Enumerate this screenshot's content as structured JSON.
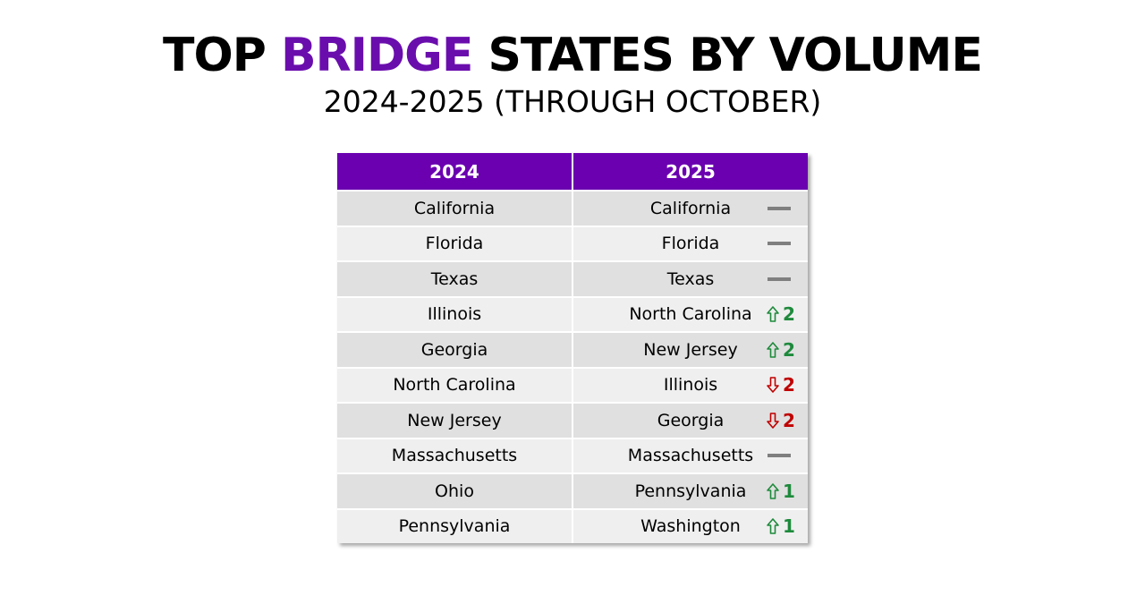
{
  "header": {
    "title_parts": [
      "TOP",
      "BRIDGE",
      "STATES BY VOLUME"
    ],
    "subtitle": "2024-2025 (THROUGH OCTOBER)"
  },
  "table": {
    "columns": [
      "2024",
      "2025"
    ],
    "rows": [
      {
        "state_2024": "California",
        "state_2025": "California",
        "change": {
          "direction": "none"
        }
      },
      {
        "state_2024": "Florida",
        "state_2025": "Florida",
        "change": {
          "direction": "none"
        }
      },
      {
        "state_2024": "Texas",
        "state_2025": "Texas",
        "change": {
          "direction": "none"
        }
      },
      {
        "state_2024": "Illinois",
        "state_2025": "North Carolina",
        "change": {
          "direction": "up",
          "amount": 2
        }
      },
      {
        "state_2024": "Georgia",
        "state_2025": "New Jersey",
        "change": {
          "direction": "up",
          "amount": 2
        }
      },
      {
        "state_2024": "North Carolina",
        "state_2025": "Illinois",
        "change": {
          "direction": "down",
          "amount": 2
        }
      },
      {
        "state_2024": "New Jersey",
        "state_2025": "Georgia",
        "change": {
          "direction": "down",
          "amount": 2
        }
      },
      {
        "state_2024": "Massachusetts",
        "state_2025": "Massachusetts",
        "change": {
          "direction": "none"
        }
      },
      {
        "state_2024": "Ohio",
        "state_2025": "Pennsylvania",
        "change": {
          "direction": "up",
          "amount": 1
        }
      },
      {
        "state_2024": "Pennsylvania",
        "state_2025": "Washington",
        "change": {
          "direction": "up",
          "amount": 1
        }
      }
    ]
  }
}
